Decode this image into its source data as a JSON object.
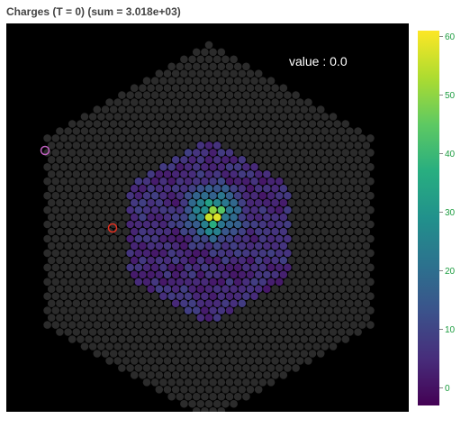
{
  "title": "Charges (T = 0) (sum = 3.018e+03)",
  "readout": "value : 0.0",
  "chart_data": {
    "type": "heatmap",
    "title": "Charges (T = 0) (sum = 3.018e+03)",
    "geometry": "hexagonal camera of circular pixels (~1800 pixels)",
    "colormap": "viridis",
    "background_color": "#000000",
    "empty_pixel_color": "#2b2b2b",
    "sum": 3018,
    "value_range": [
      -3,
      61
    ],
    "colorbar": {
      "ticks": [
        0,
        10,
        20,
        30,
        40,
        50,
        60
      ],
      "tick_labels": [
        "0",
        "10",
        "20",
        "30",
        "40",
        "50",
        "60"
      ],
      "tick_color": "#1a9c3e"
    },
    "active_region": "central hexagon of low charges (about 0 to 10)",
    "hotspot": {
      "peak_value": 60,
      "typical_values": [
        25,
        30,
        40,
        55,
        60
      ]
    },
    "markers": [
      {
        "name": "highlight-1",
        "color": "#c060c0"
      },
      {
        "name": "highlight-2",
        "color": "#e03020"
      }
    ],
    "readout_value": 0.0
  }
}
